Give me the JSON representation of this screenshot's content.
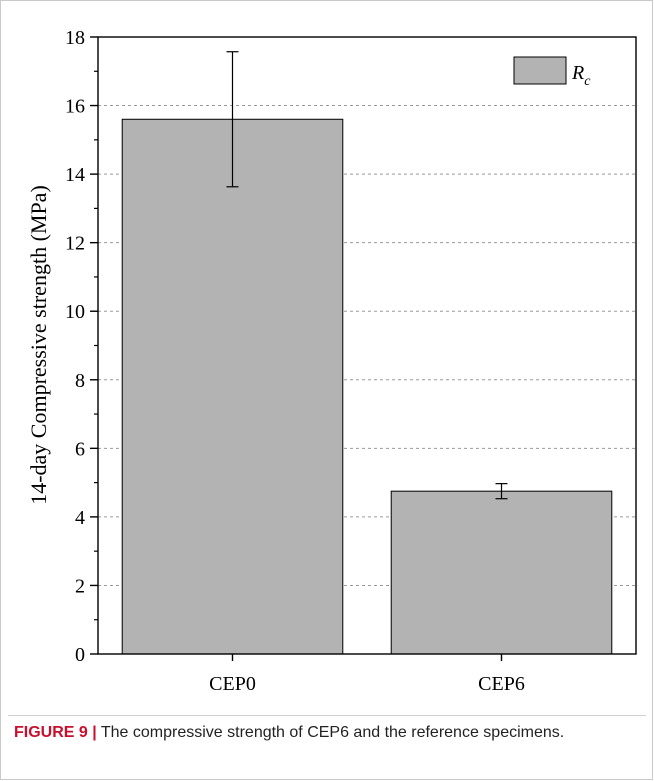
{
  "chart_data": {
    "type": "bar",
    "categories": [
      "CEP0",
      "CEP6"
    ],
    "series": [
      {
        "name": "R_c",
        "values": [
          15.6,
          4.75
        ],
        "errors": [
          1.97,
          0.22
        ]
      }
    ],
    "ylabel": "14-day Compressive strength (MPa)",
    "xlabel": "",
    "ylim": [
      0,
      18
    ],
    "yticks": [
      0,
      2,
      4,
      6,
      8,
      10,
      12,
      14,
      16,
      18
    ],
    "grid": "horizontal dashed",
    "legend_position": "top-right",
    "bar_color": "#b3b3b3"
  },
  "legend": {
    "symbol": "R",
    "subscript": "c"
  },
  "caption": {
    "label": "FIGURE 9 |",
    "text": " The compressive strength of CEP6 and the reference specimens."
  }
}
